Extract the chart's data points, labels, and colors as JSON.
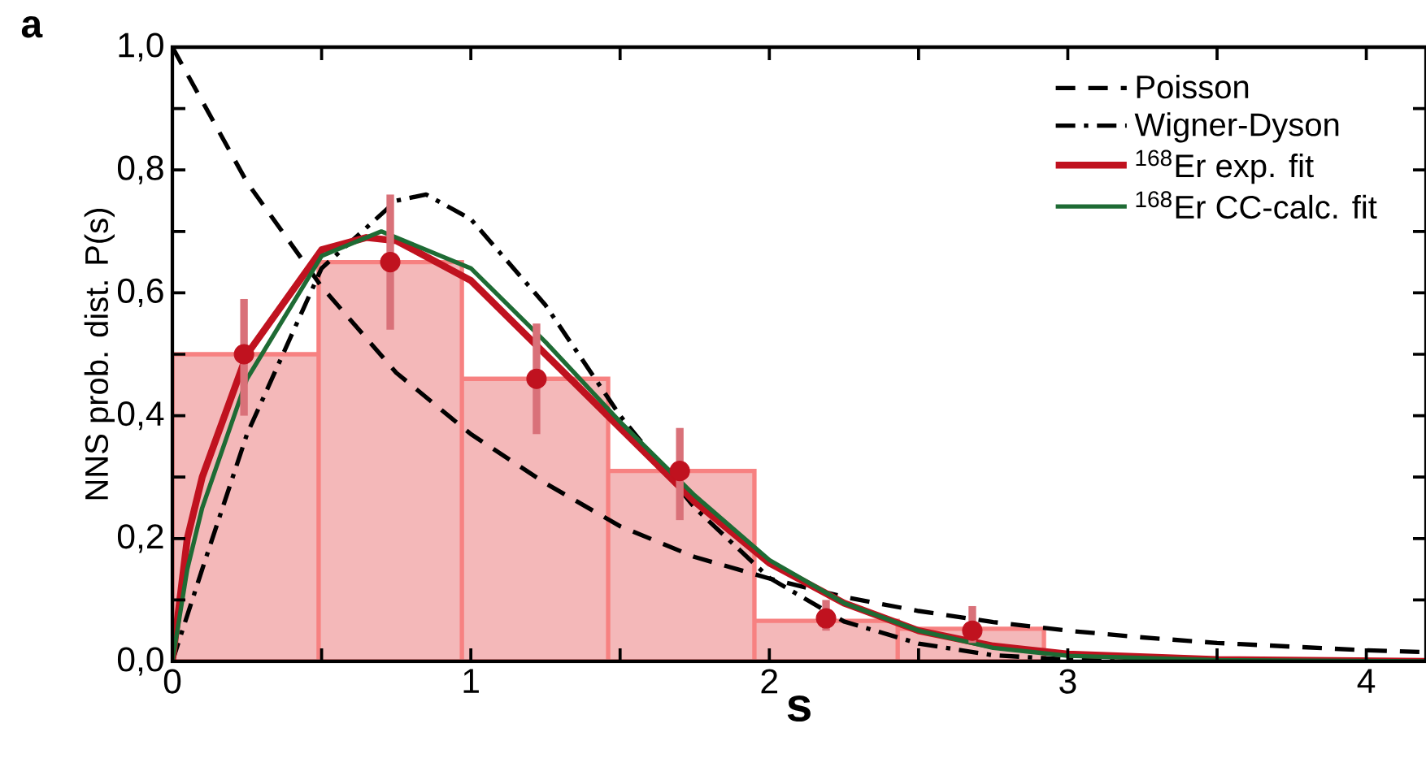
{
  "chart_data": {
    "type": "histogram",
    "title": "a",
    "xlabel": "s",
    "ylabel": "NNS prob. dist. P(s)",
    "bins": [
      0,
      0.49,
      0.97,
      1.46,
      1.95,
      2.43,
      2.92
    ],
    "values": [
      0.5,
      0.65,
      0.46,
      0.31,
      0.066,
      0.053
    ],
    "color": "#f4b8b9",
    "series": [
      {
        "name": "Poisson",
        "type": "line",
        "color": "#000000",
        "line_style": "dashed",
        "x": [
          0,
          0.25,
          0.5,
          0.75,
          1.0,
          1.25,
          1.5,
          1.75,
          2.0,
          2.25,
          2.5,
          2.75,
          3.0,
          3.25,
          3.5,
          3.75,
          4.0,
          4.2
        ],
        "values": [
          1.0,
          0.78,
          0.61,
          0.47,
          0.37,
          0.29,
          0.22,
          0.17,
          0.135,
          0.105,
          0.082,
          0.064,
          0.05,
          0.039,
          0.03,
          0.024,
          0.018,
          0.015
        ]
      },
      {
        "name": "Wigner-Dyson",
        "type": "line",
        "color": "#000000",
        "line_style": "dashdot",
        "x": [
          0,
          0.1,
          0.25,
          0.5,
          0.75,
          0.85,
          1.0,
          1.25,
          1.5,
          1.75,
          2.0,
          2.25,
          2.5,
          2.75,
          3.0,
          3.5,
          4.2
        ],
        "values": [
          0,
          0.15,
          0.37,
          0.64,
          0.75,
          0.76,
          0.72,
          0.58,
          0.4,
          0.25,
          0.136,
          0.065,
          0.029,
          0.01,
          0.003,
          0,
          0
        ]
      },
      {
        "name": "$^{168}$Er exp. fit",
        "type": "line",
        "color": "#c0121f",
        "line_style": "solid",
        "x": [
          0,
          0.05,
          0.1,
          0.25,
          0.5,
          0.65,
          0.75,
          1.0,
          1.25,
          1.5,
          1.75,
          2.0,
          2.25,
          2.5,
          2.75,
          3.0,
          3.5,
          4.2
        ],
        "values": [
          0,
          0.2,
          0.3,
          0.5,
          0.67,
          0.69,
          0.685,
          0.62,
          0.5,
          0.38,
          0.26,
          0.16,
          0.095,
          0.05,
          0.025,
          0.012,
          0.003,
          0
        ]
      },
      {
        "name": "$^{168}$Er CC-calc. fit",
        "type": "line",
        "color": "#1e6b34",
        "line_style": "solid",
        "x": [
          0,
          0.05,
          0.1,
          0.25,
          0.5,
          0.7,
          1.0,
          1.25,
          1.5,
          1.75,
          2.0,
          2.25,
          2.5,
          2.75,
          3.0,
          3.5,
          4.2
        ],
        "values": [
          0,
          0.15,
          0.25,
          0.46,
          0.66,
          0.7,
          0.64,
          0.52,
          0.39,
          0.27,
          0.165,
          0.095,
          0.05,
          0.022,
          0.009,
          0.002,
          0
        ]
      },
      {
        "type": "scatter",
        "color": "#c0121f",
        "x": [
          0.24,
          0.73,
          1.22,
          1.7,
          2.19,
          2.68
        ],
        "values": [
          0.5,
          0.65,
          0.46,
          0.31,
          0.07,
          0.05
        ],
        "errors": [
          [
            0.4,
            0.59
          ],
          [
            0.54,
            0.76
          ],
          [
            0.37,
            0.55
          ],
          [
            0.23,
            0.38
          ],
          [
            0.05,
            0.1
          ],
          [
            0.03,
            0.09
          ]
        ]
      }
    ],
    "xlim": [
      0,
      4.2
    ],
    "ylim": [
      0,
      1.0
    ],
    "xticks": [
      0,
      {
        "value": 0.5,
        "label": null
      },
      1,
      {
        "value": 1.5,
        "label": null
      },
      2,
      {
        "value": 2.5,
        "label": null
      },
      3,
      {
        "value": 3.5,
        "label": null
      },
      4
    ],
    "yticks": [
      {
        "value": 0,
        "label": "0,0"
      },
      {
        "value": 0.1,
        "label": null
      },
      {
        "value": 0.2,
        "label": "0,2"
      },
      {
        "value": 0.3,
        "label": null
      },
      {
        "value": 0.4,
        "label": "0,4"
      },
      {
        "value": 0.5,
        "label": null
      },
      {
        "value": 0.6,
        "label": "0,6"
      },
      {
        "value": 0.7,
        "label": null
      },
      {
        "value": 0.8,
        "label": "0,8"
      },
      {
        "value": 0.9,
        "label": null
      },
      {
        "value": 1.0,
        "label": "1,0"
      }
    ],
    "legend": "top right",
    "grid": false
  }
}
